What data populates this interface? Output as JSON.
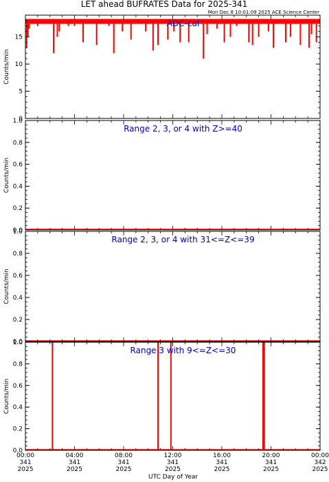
{
  "header": {
    "title": "LET ahead BUFRATES Data for 2025-341",
    "timestamp": "Mon Dec  8 10:01:09 2025 ACE Science Center"
  },
  "colors": {
    "data": "#ff0000",
    "panel_title": "#0000cc",
    "axis": "#000000"
  },
  "chart_data": [
    {
      "type": "bar",
      "title": "ADC-cal",
      "ylabel": "Counts/min",
      "ylim": [
        0,
        19
      ],
      "yticks": [
        "0",
        "5",
        "10",
        "15"
      ],
      "yticks_values": [
        0,
        5,
        10,
        15
      ],
      "x_hours": [
        0.1,
        0.2,
        0.3,
        1.0,
        1.4,
        2.3,
        2.6,
        2.75,
        3.5,
        4.0,
        4.7,
        5.8,
        6.8,
        7.2,
        7.9,
        8.6,
        9.8,
        10.4,
        10.8,
        11.6,
        12.1,
        12.6,
        13.3,
        14.5,
        14.8,
        15.6,
        16.2,
        16.7,
        17.2,
        18.2,
        18.5,
        19.0,
        19.8,
        20.2,
        21.2,
        21.6,
        22.4,
        23.1,
        23.3,
        23.7
      ],
      "values": [
        13,
        15,
        16.5,
        17,
        17.5,
        12,
        15,
        16,
        17,
        17,
        14,
        13.5,
        17,
        12,
        16,
        14.5,
        16,
        12.5,
        13.5,
        14.5,
        16,
        14,
        14,
        11,
        15.5,
        16.5,
        14,
        15,
        17,
        14,
        13.5,
        15,
        16,
        13,
        14,
        15,
        13.5,
        13,
        15.5,
        14
      ],
      "baseline": 17.5,
      "baseline_band": [
        17.4,
        18.3
      ]
    },
    {
      "type": "bar",
      "title": "Range 2, 3, or 4 with Z>=40",
      "ylabel": "Counts/min",
      "ylim": [
        0,
        1
      ],
      "yticks": [
        "0.0",
        "0.2",
        "0.4",
        "0.6",
        "0.8",
        "1.0"
      ],
      "yticks_values": [
        0,
        0.2,
        0.4,
        0.6,
        0.8,
        1.0
      ],
      "x_hours": [],
      "values": [],
      "baseline": 0
    },
    {
      "type": "bar",
      "title": "Range 2, 3, or 4 with 31<=Z<=39",
      "ylabel": "Counts/min",
      "ylim": [
        0,
        1
      ],
      "yticks": [
        "0.0",
        "0.2",
        "0.4",
        "0.6",
        "0.8",
        "1.0"
      ],
      "yticks_values": [
        0,
        0.2,
        0.4,
        0.6,
        0.8,
        1.0
      ],
      "x_hours": [],
      "values": [],
      "baseline": 0
    },
    {
      "type": "bar",
      "title": "Range 3 with 9<=Z<=30",
      "ylabel": "Counts/min",
      "ylim": [
        0,
        1
      ],
      "yticks": [
        "0.0",
        "0.2",
        "0.4",
        "0.6",
        "0.8",
        "1.0"
      ],
      "yticks_values": [
        0,
        0.2,
        0.4,
        0.6,
        0.8,
        1.0
      ],
      "x_hours": [
        2.2,
        10.8,
        11.85,
        19.35,
        19.45
      ],
      "values": [
        1,
        1,
        1,
        1,
        1
      ],
      "baseline": 0
    }
  ],
  "xaxis": {
    "label": "UTC Day of Year",
    "range_hours": [
      0,
      24
    ],
    "ticks": [
      {
        "hours": 0,
        "time": "00:00",
        "doy": "341",
        "year": "2025"
      },
      {
        "hours": 4,
        "time": "04:00",
        "doy": "341",
        "year": "2025"
      },
      {
        "hours": 8,
        "time": "08:00",
        "doy": "341",
        "year": "2025"
      },
      {
        "hours": 12,
        "time": "12:00",
        "doy": "341",
        "year": "2025"
      },
      {
        "hours": 16,
        "time": "16:00",
        "doy": "341",
        "year": "2025"
      },
      {
        "hours": 20,
        "time": "20:00",
        "doy": "341",
        "year": "2025"
      },
      {
        "hours": 24,
        "time": "00:00",
        "doy": "342",
        "year": "2025"
      }
    ]
  }
}
